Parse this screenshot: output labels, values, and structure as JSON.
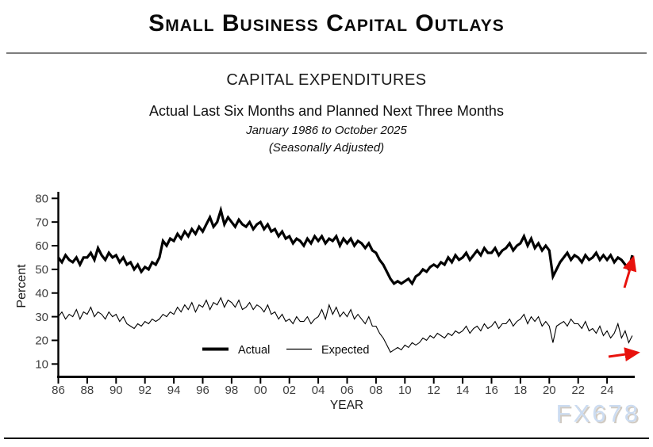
{
  "header": {
    "title": "Small Business Capital Outlays"
  },
  "chart_header": {
    "title": "CAPITAL EXPENDITURES",
    "subtitle": "Actual Last Six Months and Planned Next Three Months",
    "date_range": "January 1986 to October 2025",
    "note": "(Seasonally Adjusted)"
  },
  "watermark": "FX678",
  "chart_data": {
    "type": "line",
    "title": "CAPITAL EXPENDITURES",
    "xlabel": "YEAR",
    "ylabel": "Percent",
    "ylim": [
      10,
      80
    ],
    "yticks": [
      10,
      20,
      30,
      40,
      50,
      60,
      70,
      80
    ],
    "xticks": [
      "86",
      "88",
      "90",
      "92",
      "94",
      "96",
      "98",
      "00",
      "02",
      "04",
      "06",
      "08",
      "10",
      "12",
      "14",
      "16",
      "18",
      "20",
      "22",
      "24"
    ],
    "x_start_year": 1986.0,
    "x_step_years": 0.25,
    "grid": false,
    "legend_position": "inside-bottom-center",
    "line_color": "#000000",
    "annotation_color": "#e8120d",
    "series": [
      {
        "name": "Actual",
        "stroke_width": 3.2,
        "values": [
          55,
          53,
          56,
          54,
          53,
          55,
          52,
          55,
          55,
          57,
          54,
          59,
          56,
          54,
          57,
          55,
          56,
          53,
          55,
          52,
          53,
          50,
          52,
          49,
          51,
          50,
          53,
          52,
          55,
          62,
          60,
          63,
          62,
          65,
          63,
          66,
          64,
          67,
          65,
          68,
          66,
          69,
          72,
          68,
          70,
          75,
          69,
          72,
          70,
          68,
          71,
          69,
          68,
          70,
          67,
          69,
          70,
          67,
          69,
          66,
          67,
          64,
          66,
          63,
          64,
          61,
          63,
          62,
          60,
          63,
          61,
          64,
          62,
          64,
          61,
          63,
          62,
          64,
          60,
          63,
          61,
          63,
          60,
          62,
          61,
          59,
          61,
          58,
          57,
          54,
          52,
          49,
          46,
          44,
          45,
          44,
          45,
          46,
          44,
          47,
          48,
          50,
          49,
          51,
          52,
          51,
          53,
          52,
          55,
          53,
          56,
          54,
          55,
          57,
          54,
          56,
          58,
          56,
          59,
          57,
          57,
          59,
          56,
          58,
          59,
          61,
          58,
          60,
          61,
          64,
          60,
          63,
          59,
          61,
          58,
          60,
          58,
          47,
          50,
          53,
          55,
          57,
          54,
          56,
          55,
          53,
          56,
          54,
          55,
          57,
          54,
          56,
          54,
          56,
          53,
          55,
          54,
          52,
          50,
          56
        ]
      },
      {
        "name": "Expected",
        "stroke_width": 1.1,
        "values": [
          30,
          32,
          29,
          31,
          30,
          33,
          29,
          32,
          31,
          34,
          30,
          32,
          31,
          29,
          32,
          30,
          31,
          28,
          30,
          27,
          26,
          25,
          27,
          26,
          28,
          27,
          29,
          28,
          29,
          31,
          30,
          32,
          31,
          34,
          32,
          35,
          33,
          36,
          32,
          35,
          34,
          37,
          33,
          36,
          35,
          38,
          34,
          37,
          36,
          34,
          37,
          33,
          34,
          36,
          33,
          35,
          34,
          32,
          35,
          31,
          32,
          29,
          31,
          28,
          29,
          27,
          30,
          28,
          28,
          30,
          27,
          29,
          30,
          33,
          29,
          35,
          31,
          34,
          30,
          32,
          30,
          33,
          29,
          31,
          29,
          27,
          30,
          26,
          26,
          23,
          21,
          18,
          15,
          16,
          17,
          16,
          18,
          17,
          19,
          18,
          19,
          21,
          20,
          22,
          21,
          23,
          22,
          21,
          23,
          22,
          24,
          23,
          24,
          26,
          23,
          25,
          26,
          24,
          27,
          25,
          26,
          28,
          25,
          27,
          27,
          29,
          26,
          28,
          29,
          31,
          27,
          30,
          28,
          30,
          26,
          28,
          26,
          19,
          26,
          27,
          28,
          26,
          29,
          27,
          27,
          25,
          28,
          24,
          25,
          23,
          26,
          22,
          24,
          21,
          23,
          27,
          21,
          24,
          19,
          22
        ]
      }
    ],
    "annotations": [
      {
        "name": "actual-trend-arrow",
        "series": "Actual",
        "direction": "up-right",
        "color": "#e8120d"
      },
      {
        "name": "expected-trend-arrow",
        "series": "Expected",
        "direction": "right",
        "color": "#e8120d"
      }
    ]
  }
}
